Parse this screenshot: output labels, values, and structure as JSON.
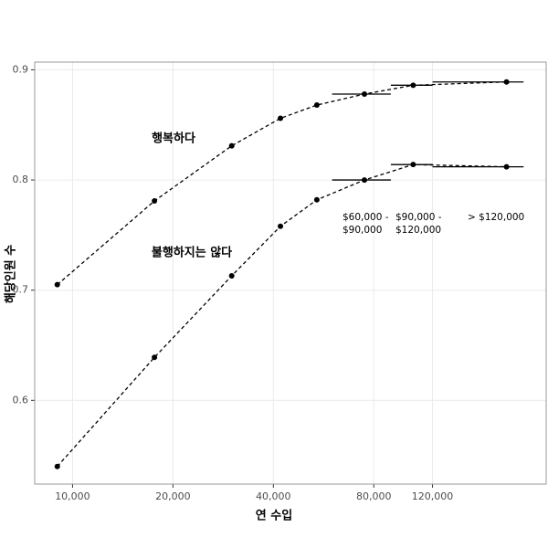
{
  "chart_data": {
    "type": "line",
    "x_label": "연 수입",
    "y_label": "해당인원 수",
    "x": [
      9000,
      17600,
      30000,
      42000,
      54000,
      75000,
      105000,
      200000
    ],
    "series": [
      {
        "name": "행복하다",
        "color": "#000000",
        "values": [
          0.705,
          0.781,
          0.831,
          0.856,
          0.868,
          0.878,
          0.886,
          0.889
        ]
      },
      {
        "name": "불행하지는 않다",
        "color": "#000000",
        "values": [
          0.54,
          0.639,
          0.713,
          0.758,
          0.782,
          0.8,
          0.814,
          0.812
        ]
      }
    ],
    "ranges": [
      [
        60000,
        90000
      ],
      [
        90000,
        120000
      ],
      [
        120000,
        225000
      ]
    ],
    "range_labels": [
      [
        "$60,000 -",
        "$90,000"
      ],
      [
        "$90,000 -",
        "$120,000"
      ],
      [
        "> $120,000"
      ]
    ],
    "xlim": [
      7700,
      263000
    ],
    "xscale": "log",
    "xticks": [
      {
        "value": 10000,
        "label": "10,000"
      },
      {
        "value": 20000,
        "label": "20,000"
      },
      {
        "value": 40000,
        "label": "40,000"
      },
      {
        "value": 80000,
        "label": "80,000"
      },
      {
        "value": 120000,
        "label": "120,000"
      }
    ],
    "ylim": [
      0.524,
      0.907
    ],
    "yticks": [
      0.6,
      0.7,
      0.8,
      0.9
    ],
    "grid": true
  }
}
